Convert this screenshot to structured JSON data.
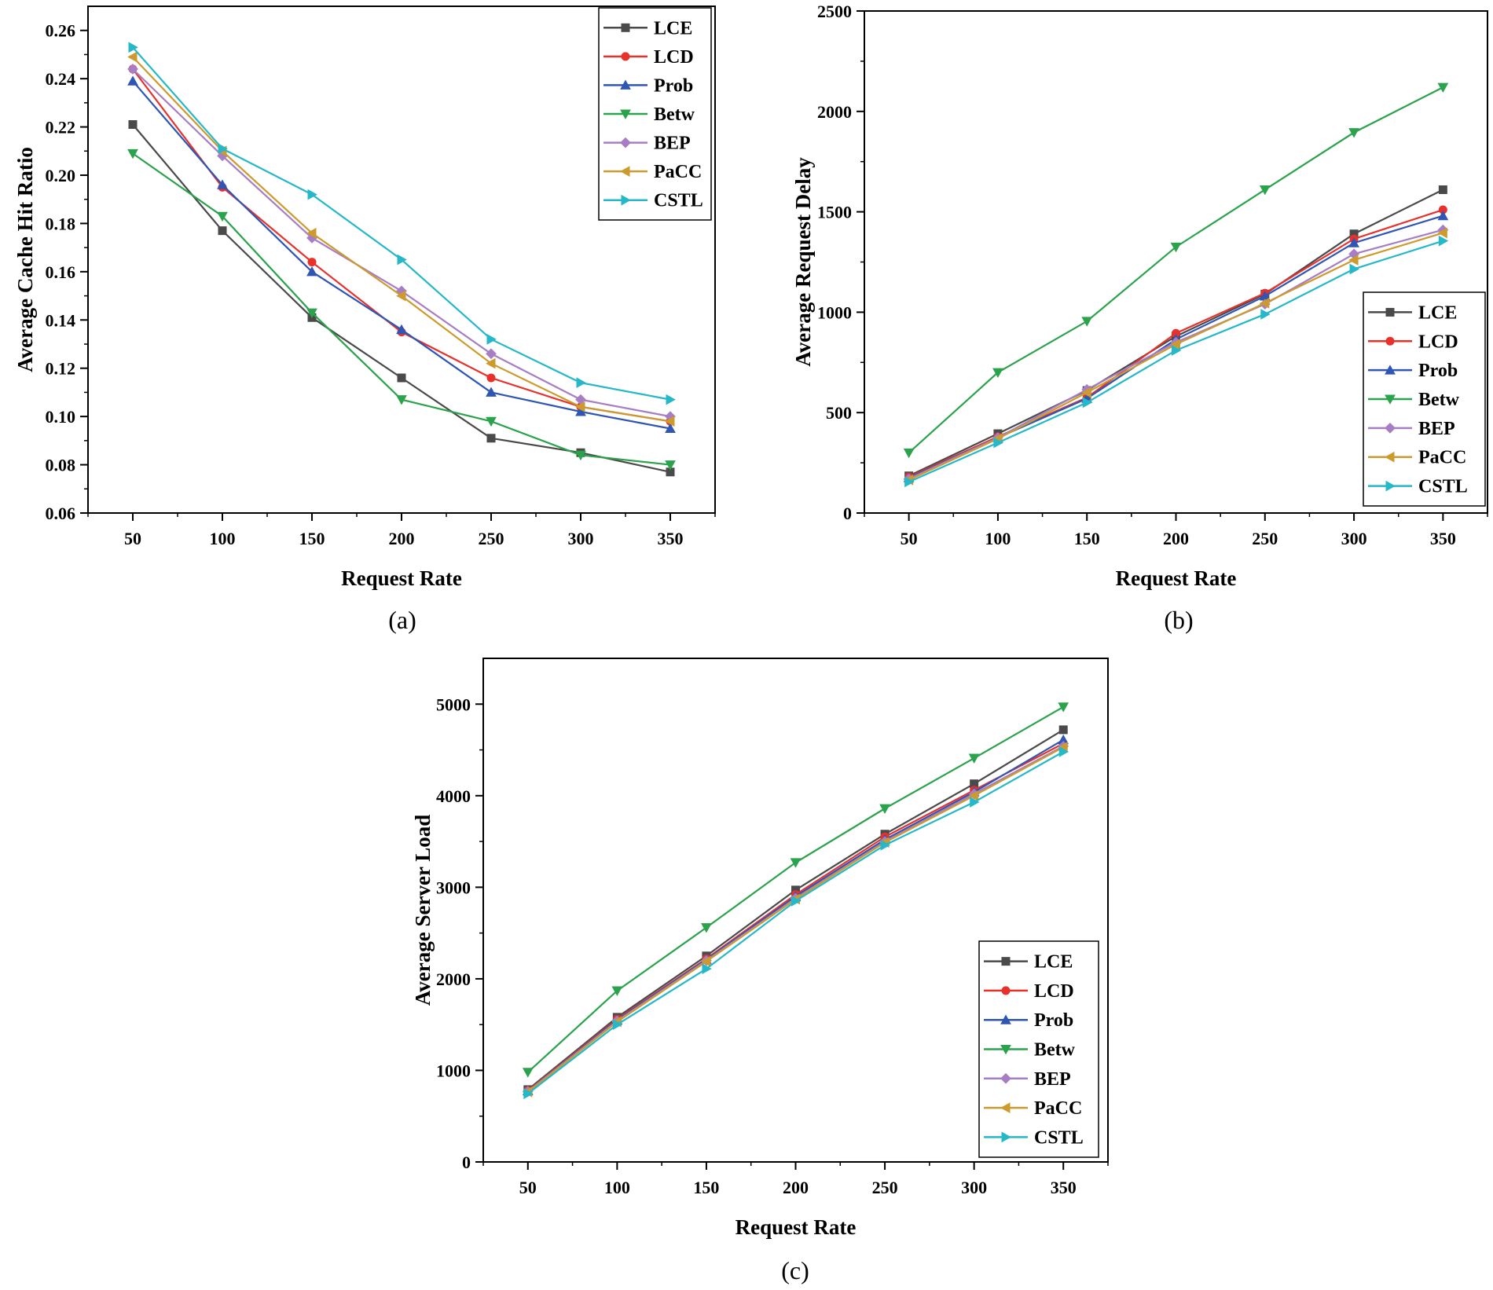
{
  "chart_data": [
    {
      "type": "line",
      "caption": "(a)",
      "xlabel": "Request Rate",
      "ylabel": "Average Cache Hit Ratio",
      "x": [
        50,
        100,
        150,
        200,
        250,
        300,
        350
      ],
      "xlim": [
        25,
        375
      ],
      "ylim": [
        0.06,
        0.27
      ],
      "yticks": [
        0.06,
        0.08,
        0.1,
        0.12,
        0.14,
        0.16,
        0.18,
        0.2,
        0.22,
        0.24,
        0.26
      ],
      "ytick_labels": [
        "0.06",
        "0.08",
        "0.10",
        "0.12",
        "0.14",
        "0.16",
        "0.18",
        "0.20",
        "0.22",
        "0.24",
        "0.26"
      ],
      "legend_position": "top-right",
      "series": [
        {
          "name": "LCE",
          "values": [
            0.221,
            0.177,
            0.141,
            0.116,
            0.091,
            0.085,
            0.077
          ]
        },
        {
          "name": "LCD",
          "values": [
            0.244,
            0.195,
            0.164,
            0.135,
            0.116,
            0.104,
            0.098
          ]
        },
        {
          "name": "Prob",
          "values": [
            0.239,
            0.196,
            0.16,
            0.136,
            0.11,
            0.102,
            0.095
          ]
        },
        {
          "name": "Betw",
          "values": [
            0.209,
            0.183,
            0.143,
            0.107,
            0.098,
            0.084,
            0.08
          ]
        },
        {
          "name": "BEP",
          "values": [
            0.244,
            0.208,
            0.174,
            0.152,
            0.126,
            0.107,
            0.1
          ]
        },
        {
          "name": "PaCC",
          "values": [
            0.249,
            0.21,
            0.176,
            0.15,
            0.122,
            0.104,
            0.098
          ]
        },
        {
          "name": "CSTL",
          "values": [
            0.253,
            0.211,
            0.192,
            0.165,
            0.132,
            0.114,
            0.107
          ]
        }
      ]
    },
    {
      "type": "line",
      "caption": "(b)",
      "xlabel": "Request Rate",
      "ylabel": "Average Request Delay",
      "x": [
        50,
        100,
        150,
        200,
        250,
        300,
        350
      ],
      "xlim": [
        25,
        375
      ],
      "ylim": [
        0,
        2500
      ],
      "yticks": [
        0,
        500,
        1000,
        1500,
        2000,
        2500
      ],
      "ytick_labels": [
        "0",
        "500",
        "1000",
        "1500",
        "2000",
        "2500"
      ],
      "legend_position": "bottom-right",
      "series": [
        {
          "name": "LCE",
          "values": [
            185,
            395,
            610,
            880,
            1090,
            1390,
            1610
          ]
        },
        {
          "name": "LCD",
          "values": [
            180,
            380,
            575,
            895,
            1095,
            1365,
            1510
          ]
        },
        {
          "name": "Prob",
          "values": [
            175,
            375,
            570,
            865,
            1080,
            1345,
            1480
          ]
        },
        {
          "name": "Betw",
          "values": [
            300,
            700,
            955,
            1325,
            1610,
            1895,
            2120
          ]
        },
        {
          "name": "BEP",
          "values": [
            170,
            375,
            615,
            850,
            1040,
            1290,
            1410
          ]
        },
        {
          "name": "PaCC",
          "values": [
            165,
            370,
            600,
            840,
            1045,
            1260,
            1395
          ]
        },
        {
          "name": "CSTL",
          "values": [
            155,
            350,
            550,
            810,
            990,
            1215,
            1355
          ]
        }
      ]
    },
    {
      "type": "line",
      "caption": "(c)",
      "xlabel": "Request Rate",
      "ylabel": "Average Server Load",
      "x": [
        50,
        100,
        150,
        200,
        250,
        300,
        350
      ],
      "xlim": [
        25,
        375
      ],
      "ylim": [
        0,
        5500
      ],
      "yticks": [
        0,
        1000,
        2000,
        3000,
        4000,
        5000
      ],
      "ytick_labels": [
        "0",
        "1000",
        "2000",
        "3000",
        "4000",
        "5000"
      ],
      "legend_position": "bottom-right",
      "series": [
        {
          "name": "LCE",
          "values": [
            790,
            1580,
            2250,
            2970,
            3580,
            4130,
            4720
          ]
        },
        {
          "name": "LCD",
          "values": [
            780,
            1560,
            2220,
            2920,
            3550,
            4060,
            4570
          ]
        },
        {
          "name": "Prob",
          "values": [
            775,
            1550,
            2210,
            2900,
            3520,
            4040,
            4610
          ]
        },
        {
          "name": "Betw",
          "values": [
            980,
            1870,
            2560,
            3270,
            3860,
            4410,
            4970
          ]
        },
        {
          "name": "BEP",
          "values": [
            770,
            1540,
            2200,
            2880,
            3500,
            4020,
            4540
          ]
        },
        {
          "name": "PaCC",
          "values": [
            765,
            1530,
            2190,
            2870,
            3490,
            4000,
            4530
          ]
        },
        {
          "name": "CSTL",
          "values": [
            745,
            1500,
            2110,
            2850,
            3460,
            3930,
            4480
          ]
        }
      ]
    }
  ],
  "series_colors": {
    "LCE": "#4a4a4a",
    "LCD": "#e8312b",
    "Prob": "#2f55b5",
    "Betw": "#2ba24c",
    "BEP": "#a77ec4",
    "PaCC": "#cc9a2d",
    "CSTL": "#25b8c8"
  },
  "series_markers": {
    "LCE": "square",
    "LCD": "circle",
    "Prob": "triangle-up",
    "Betw": "triangle-down",
    "BEP": "diamond",
    "PaCC": "triangle-left",
    "CSTL": "triangle-right"
  }
}
